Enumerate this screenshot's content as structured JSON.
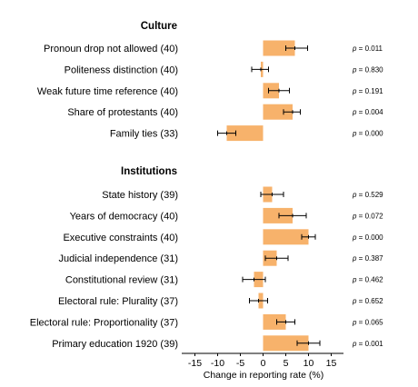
{
  "chart_data": {
    "type": "bar",
    "orientation": "horizontal",
    "xlabel": "Change in reporting rate (%)",
    "xlim": [
      -18,
      18
    ],
    "xticks": [
      -15,
      -10,
      -5,
      0,
      5,
      10,
      15
    ],
    "bar_color": "#f7b26b",
    "groups": [
      {
        "title": "Culture",
        "rows": [
          {
            "label": "Pronoun drop not allowed (40)",
            "value": 7,
            "low": 5,
            "high": 9.8,
            "p": "0.011"
          },
          {
            "label": "Politeness distinction (40)",
            "value": -0.5,
            "low": -2.5,
            "high": 1.2,
            "p": "0.830"
          },
          {
            "label": "Weak future time reference (40)",
            "value": 3.5,
            "low": 1.2,
            "high": 5.8,
            "p": "0.191"
          },
          {
            "label": "Share of protestants (40)",
            "value": 6.5,
            "low": 4.5,
            "high": 8.2,
            "p": "0.004"
          },
          {
            "label": "Family ties (33)",
            "value": -8,
            "low": -10,
            "high": -6,
            "p": "0.000"
          }
        ]
      },
      {
        "title": "Institutions",
        "rows": [
          {
            "label": "State history (39)",
            "value": 2,
            "low": -0.5,
            "high": 4.5,
            "p": "0.529"
          },
          {
            "label": "Years of democracy (40)",
            "value": 6.5,
            "low": 3.5,
            "high": 9.5,
            "p": "0.072"
          },
          {
            "label": "Executive constraints (40)",
            "value": 10,
            "low": 8.5,
            "high": 11.5,
            "p": "0.000"
          },
          {
            "label": "Judicial independence (31)",
            "value": 3,
            "low": 0.5,
            "high": 5.5,
            "p": "0.387"
          },
          {
            "label": "Constitutional review (31)",
            "value": -2,
            "low": -4.5,
            "high": 0.5,
            "p": "0.462"
          },
          {
            "label": "Electoral rule: Plurality (37)",
            "value": -1,
            "low": -3,
            "high": 1,
            "p": "0.652"
          },
          {
            "label": "Electoral rule: Proportionality (37)",
            "value": 5,
            "low": 3,
            "high": 7,
            "p": "0.065"
          },
          {
            "label": "Primary education 1920 (39)",
            "value": 10,
            "low": 7.5,
            "high": 12.5,
            "p": "0.001"
          }
        ]
      }
    ]
  }
}
